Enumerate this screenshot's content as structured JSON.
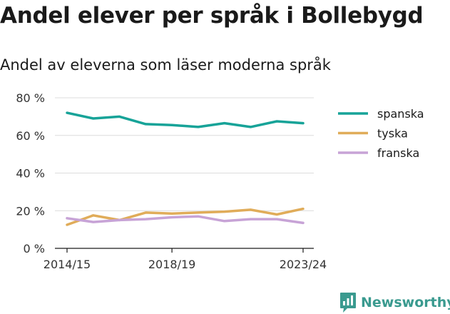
{
  "title": "Andel elever per språk i Bollebygd",
  "subtitle": "Andel av eleverna som läser moderna språk",
  "brand": {
    "name": "Newsworthy",
    "color": "#3a9a8f",
    "icon": "bar-chart-logo-icon"
  },
  "chart_data": {
    "type": "line",
    "title": "Andel elever per språk i Bollebygd",
    "subtitle": "Andel av eleverna som läser moderna språk",
    "xlabel": "",
    "ylabel": "",
    "x": [
      "2014/15",
      "2015/16",
      "2016/17",
      "2017/18",
      "2018/19",
      "2019/20",
      "2020/21",
      "2021/22",
      "2022/23",
      "2023/24"
    ],
    "x_tick_labels": [
      "2014/15",
      "2018/19",
      "2023/24"
    ],
    "y_ticks": [
      0,
      20,
      40,
      60,
      80
    ],
    "y_tick_labels": [
      "0 %",
      "20 %",
      "40 %",
      "60 %",
      "80 %"
    ],
    "ylim": [
      0,
      80
    ],
    "grid": true,
    "legend_position": "right",
    "series": [
      {
        "name": "spanska",
        "color": "#17a398",
        "values": [
          72,
          69,
          70,
          66,
          65.5,
          64.5,
          66.5,
          64.5,
          67.5,
          66.5
        ]
      },
      {
        "name": "tyska",
        "color": "#e0ac59",
        "values": [
          12.5,
          17.5,
          15,
          19,
          18.5,
          19,
          19.5,
          20.5,
          18,
          21
        ]
      },
      {
        "name": "franska",
        "color": "#c7a3d6",
        "values": [
          16,
          14,
          15,
          15.5,
          16.5,
          17,
          14.5,
          15.5,
          15.5,
          13.5
        ]
      }
    ]
  }
}
